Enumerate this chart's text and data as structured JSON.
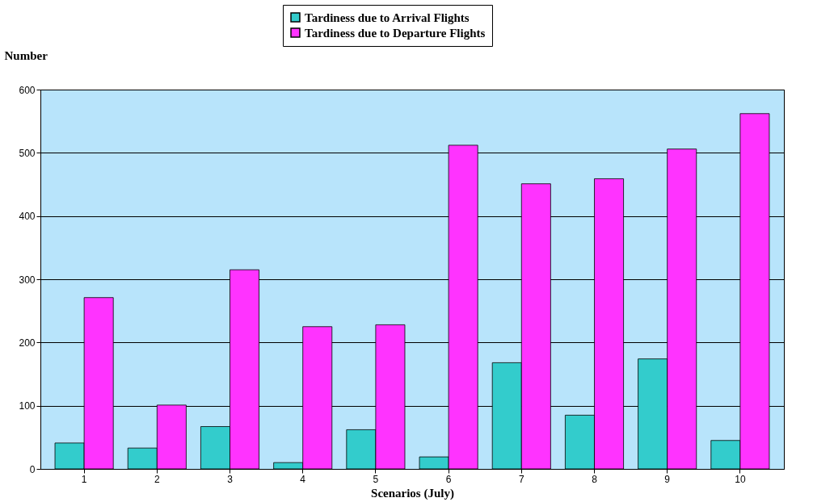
{
  "chart_data": {
    "type": "bar",
    "xlabel": "Scenarios (July)",
    "ylabel": "Number",
    "categories": [
      "1",
      "2",
      "3",
      "4",
      "5",
      "6",
      "7",
      "8",
      "9",
      "10"
    ],
    "series": [
      {
        "name": "Tardiness due to Arrival Flights",
        "color": "#33cccc",
        "values": [
          41,
          33,
          67,
          10,
          62,
          19,
          168,
          85,
          174,
          45
        ]
      },
      {
        "name": "Tardiness due to Departure Flights",
        "color": "#ff33ff",
        "values": [
          271,
          101,
          315,
          225,
          228,
          512,
          451,
          459,
          506,
          562
        ]
      }
    ],
    "ylim": [
      0,
      600
    ],
    "yticks": [
      0,
      100,
      200,
      300,
      400,
      500,
      600
    ],
    "grid": "y",
    "legend": "top"
  }
}
